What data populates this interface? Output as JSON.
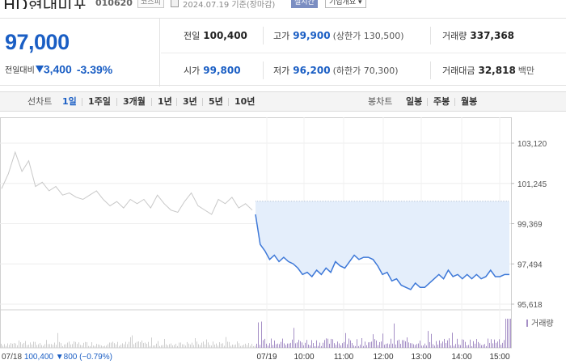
{
  "header": {
    "title": "HD현대미포",
    "code": "010620",
    "market_badge": "코스피",
    "date": "2024.07.19 기준(장마감)",
    "realtime_button": "실시간",
    "overview_button": "기업개요 ▾"
  },
  "summary": {
    "price": "97,000",
    "change_label": "전일대비",
    "change": "3,400",
    "change_pct": "-3.39%",
    "direction": "down",
    "prev_close_label": "전일",
    "prev_close": "100,400",
    "high_label": "고가",
    "high": "99,900",
    "upper_limit": "(상한가 130,500)",
    "volume_label": "거래량",
    "volume": "337,368",
    "open_label": "시가",
    "open": "99,800",
    "low_label": "저가",
    "low": "96,200",
    "lower_limit": "(하한가 70,300)",
    "amount_label": "거래대금",
    "amount": "32,818",
    "amount_unit": "백만"
  },
  "tabs": {
    "line_label": "선차트",
    "line_periods": [
      "1일",
      "1주일",
      "3개월",
      "1년",
      "3년",
      "5년",
      "10년"
    ],
    "active_period": "1일",
    "candle_label": "봉차트",
    "candle_periods": [
      "일봉",
      "주봉",
      "월봉"
    ]
  },
  "colors": {
    "accent": "#1a5ec4",
    "line": "#3d78d8",
    "fill": "#e4eefb",
    "prev": "#c8c8c8",
    "volume": "#a58fc6"
  },
  "chart_data": {
    "type": "line",
    "ylim": [
      95618,
      103120
    ],
    "y_ticks": [
      "103,120",
      "101,245",
      "99,369",
      "97,494",
      "95,618"
    ],
    "x_ticks": [
      "07/19",
      "10:00",
      "11:00",
      "12:00",
      "13:00",
      "14:00",
      "15:00"
    ],
    "reference_price": 100400,
    "prev_day_info": {
      "date": "07/18",
      "close": "100,400",
      "change": "▼800",
      "change_pct": "(−0.79%)"
    },
    "volume_legend": "거래량",
    "prev_day_series": [
      101000,
      101700,
      102700,
      101800,
      102300,
      101100,
      101300,
      100900,
      101100,
      100700,
      100800,
      100600,
      100500,
      100700,
      100900,
      100500,
      100200,
      100400,
      100100,
      100500,
      100300,
      100500,
      100100,
      100700,
      100300,
      100000,
      99900,
      100400,
      100800,
      100200,
      100000,
      99800,
      100500,
      100300,
      100600,
      100100,
      100300,
      100000
    ],
    "today_series": [
      99800,
      98400,
      98100,
      97700,
      97900,
      97600,
      97800,
      97600,
      97500,
      97300,
      97000,
      97100,
      96900,
      97200,
      97000,
      97300,
      97100,
      97600,
      97400,
      97300,
      97600,
      97900,
      97700,
      97800,
      97800,
      97700,
      97400,
      97000,
      97100,
      96700,
      96800,
      96500,
      96400,
      96300,
      96600,
      96400,
      96400,
      96600,
      96800,
      97000,
      96800,
      97200,
      96900,
      97000,
      96800,
      97000,
      96800,
      97000,
      96800,
      96900,
      97200,
      96900,
      96900,
      97000,
      97000
    ]
  }
}
